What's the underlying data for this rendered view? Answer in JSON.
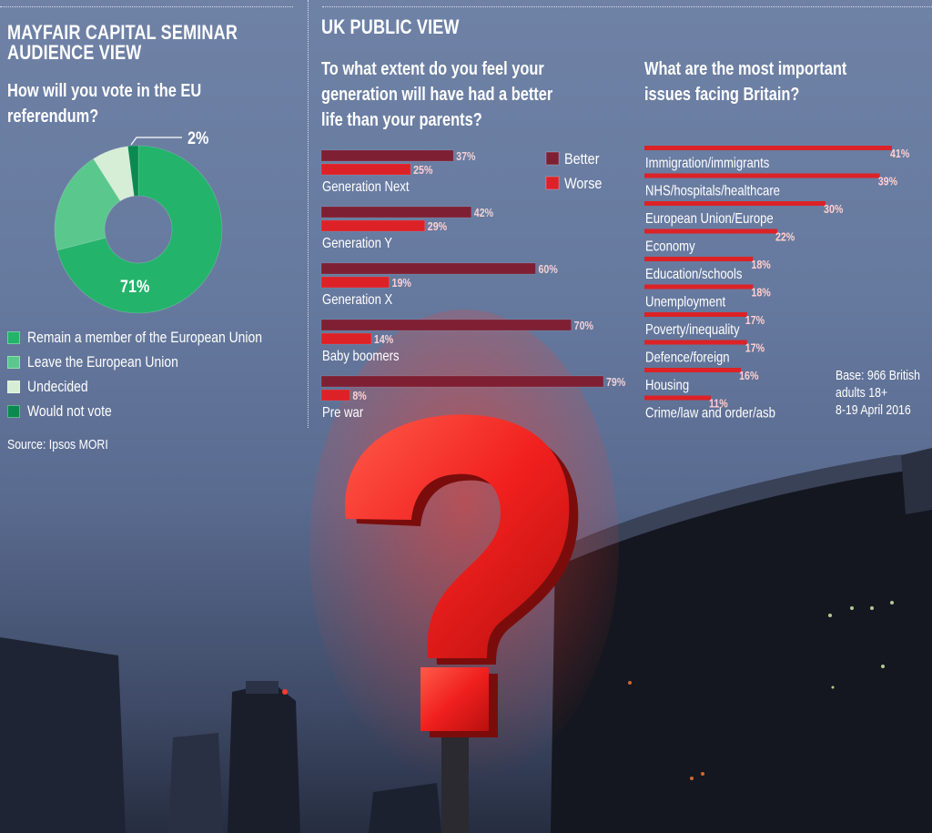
{
  "left_panel": {
    "heading_line1": "MAYFAIR CAPITAL SEMINAR",
    "heading_line2": "AUDIENCE VIEW",
    "question_line1": "How will you vote in the EU",
    "question_line2": "referendum?",
    "source": "Source: Ipsos MORI"
  },
  "right_panel": {
    "heading": "UK PUBLIC VIEW",
    "q1_line1": "To what extent do you feel your",
    "q1_line2": "generation will have had a better",
    "q1_line3": "life than your parents?",
    "q2_line1": "What are the most important",
    "q2_line2": "issues facing Britain?",
    "base_line1": "Base: 966 British",
    "base_line2": "adults 18+",
    "base_line3": "8-19 April 2016"
  },
  "colors": {
    "remain": "#24b36b",
    "leave": "#5ac88d",
    "undecided": "#d6eed6",
    "would_not_vote": "#0b8a4f",
    "better": "#7e1f34",
    "worse": "#dc2227",
    "issue_bar": "#dc2227"
  },
  "chart_data": [
    {
      "type": "pie",
      "title": "How will you vote in the EU referendum?",
      "style": "donut",
      "slices": [
        {
          "label": "Remain a member of the European Union",
          "value": 71,
          "data_label": "71%"
        },
        {
          "label": "Leave the European Union",
          "value": 20,
          "data_label": ""
        },
        {
          "label": "Undecided",
          "value": 7,
          "data_label": ""
        },
        {
          "label": "Would not vote",
          "value": 2,
          "data_label": "2%"
        }
      ]
    },
    {
      "type": "bar",
      "orientation": "horizontal",
      "title": "To what extent do you feel your generation will have had a better life than your parents?",
      "categories": [
        "Generation Next",
        "Generation Y",
        "Generation X",
        "Baby boomers",
        "Pre war"
      ],
      "series": [
        {
          "name": "Better",
          "values": [
            37,
            42,
            60,
            70,
            79
          ]
        },
        {
          "name": "Worse",
          "values": [
            25,
            29,
            19,
            14,
            8
          ]
        }
      ],
      "value_suffix": "%",
      "legend_position": "top-right",
      "xlim": [
        0,
        80
      ]
    },
    {
      "type": "bar",
      "orientation": "horizontal",
      "title": "What are the most important issues facing Britain?",
      "categories": [
        "Immigration/immigrants",
        "NHS/hospitals/healthcare",
        "European Union/Europe",
        "Economy",
        "Education/schools",
        "Unemployment",
        "Poverty/inequality",
        "Defence/foreign",
        "Housing",
        "Crime/law and order/asb"
      ],
      "values": [
        41,
        39,
        30,
        22,
        18,
        18,
        17,
        17,
        16,
        11
      ],
      "value_suffix": "%",
      "xlim": [
        0,
        41
      ]
    }
  ]
}
